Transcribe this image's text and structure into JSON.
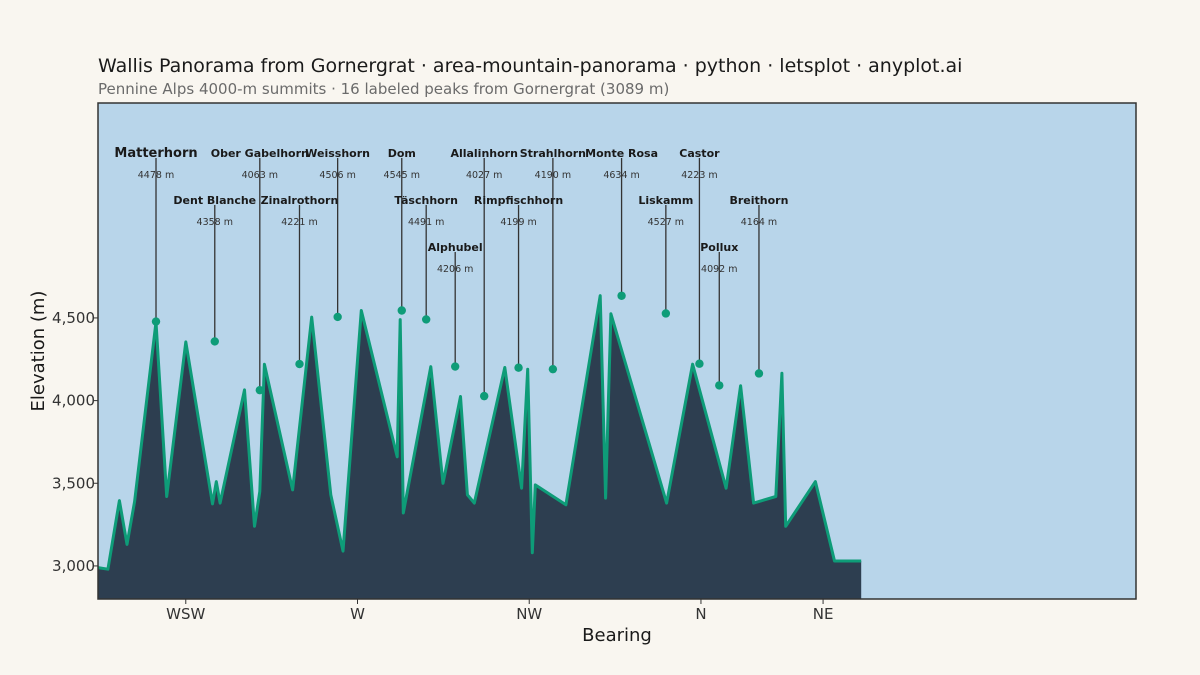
{
  "title": "Wallis Panorama from Gornergrat · area-mountain-panorama · python · letsplot · anyplot.ai",
  "subtitle": "Pennine Alps 4000-m summits · 16 labeled peaks from Gornergrat (3089 m)",
  "colors": {
    "background": "#f9f6f0",
    "sky": "#b8d5ea",
    "terrain": "#2d3e50",
    "ridge": "#0e9c78",
    "leader": "#333333"
  },
  "chart_data": {
    "type": "area",
    "xlabel": "Bearing",
    "ylabel": "Elevation (m)",
    "xlim": [
      236,
      372
    ],
    "ylim": [
      2800,
      5800
    ],
    "grid": false,
    "x_ticks": [
      {
        "value": 247.5,
        "label": "WSW"
      },
      {
        "value": 270,
        "label": "W"
      },
      {
        "value": 292.5,
        "label": "NW"
      },
      {
        "value": 315,
        "label": "N"
      },
      {
        "value": 331,
        "label": "NE"
      }
    ],
    "y_ticks": [
      {
        "value": 3000,
        "label": "3,000"
      },
      {
        "value": 3500,
        "label": "3,500"
      },
      {
        "value": 4000,
        "label": "4,000"
      },
      {
        "value": 4500,
        "label": "4,500"
      }
    ],
    "ridge": {
      "x": [
        236,
        237.3,
        238.8,
        239.8,
        240.8,
        243.6,
        245,
        247.5,
        251,
        251.5,
        252,
        255.2,
        256.5,
        257.2,
        257.8,
        261.5,
        264,
        266.5,
        268.1,
        270.5,
        275.2,
        275.6,
        276,
        279.6,
        281.2,
        283.5,
        284.4,
        285.3,
        289.3,
        291.5,
        292.3,
        292.9,
        293.3,
        297.3,
        301.8,
        302.5,
        303.2,
        310.5,
        313.9,
        318.3,
        320.2,
        321.9,
        324.8,
        325.6,
        326.1,
        330,
        332.5,
        335,
        336
      ],
      "y": [
        2990,
        2980,
        3395,
        3130,
        3390,
        4475,
        3420,
        4355,
        3375,
        3510,
        3380,
        4065,
        3240,
        3450,
        4220,
        3460,
        4505,
        3430,
        3090,
        4545,
        3660,
        4490,
        3320,
        4205,
        3500,
        4025,
        3430,
        3380,
        4200,
        3470,
        4190,
        3080,
        3490,
        3370,
        4635,
        3410,
        4525,
        3380,
        4220,
        3470,
        4090,
        3380,
        3420,
        4165,
        3240,
        3510,
        3030,
        3030,
        3030
      ]
    },
    "peaks": [
      {
        "name": "Matterhorn",
        "elevation": 4478,
        "elev_label": "4478 m",
        "x": 243.6,
        "tier": 0,
        "major": true
      },
      {
        "name": "Dent Blanche",
        "elevation": 4358,
        "elev_label": "4358 m",
        "x": 251.3,
        "tier": 1
      },
      {
        "name": "Ober Gabelhorn",
        "elevation": 4063,
        "elev_label": "4063 m",
        "x": 257.2,
        "tier": 0
      },
      {
        "name": "Zinalrothorn",
        "elevation": 4221,
        "elev_label": "4221 m",
        "x": 262.4,
        "tier": 1
      },
      {
        "name": "Weisshorn",
        "elevation": 4506,
        "elev_label": "4506 m",
        "x": 267.4,
        "tier": 0
      },
      {
        "name": "Dom",
        "elevation": 4545,
        "elev_label": "4545 m",
        "x": 275.8,
        "tier": 0
      },
      {
        "name": "Täschhorn",
        "elevation": 4491,
        "elev_label": "4491 m",
        "x": 279,
        "tier": 1
      },
      {
        "name": "Alphubel",
        "elevation": 4206,
        "elev_label": "4206 m",
        "x": 282.8,
        "tier": 2
      },
      {
        "name": "Allalinhorn",
        "elevation": 4027,
        "elev_label": "4027 m",
        "x": 286.6,
        "tier": 0
      },
      {
        "name": "Rimpfischhorn",
        "elevation": 4199,
        "elev_label": "4199 m",
        "x": 291.1,
        "tier": 1
      },
      {
        "name": "Strahlhorn",
        "elevation": 4190,
        "elev_label": "4190 m",
        "x": 295.6,
        "tier": 0
      },
      {
        "name": "Monte Rosa",
        "elevation": 4634,
        "elev_label": "4634 m",
        "x": 304.6,
        "tier": 0
      },
      {
        "name": "Liskamm",
        "elevation": 4527,
        "elev_label": "4527 m",
        "x": 310.4,
        "tier": 1
      },
      {
        "name": "Castor",
        "elevation": 4223,
        "elev_label": "4223 m",
        "x": 314.8,
        "tier": 0
      },
      {
        "name": "Pollux",
        "elevation": 4092,
        "elev_label": "4092 m",
        "x": 317.4,
        "tier": 2
      },
      {
        "name": "Breithorn",
        "elevation": 4164,
        "elev_label": "4164 m",
        "x": 322.6,
        "tier": 1
      }
    ]
  }
}
